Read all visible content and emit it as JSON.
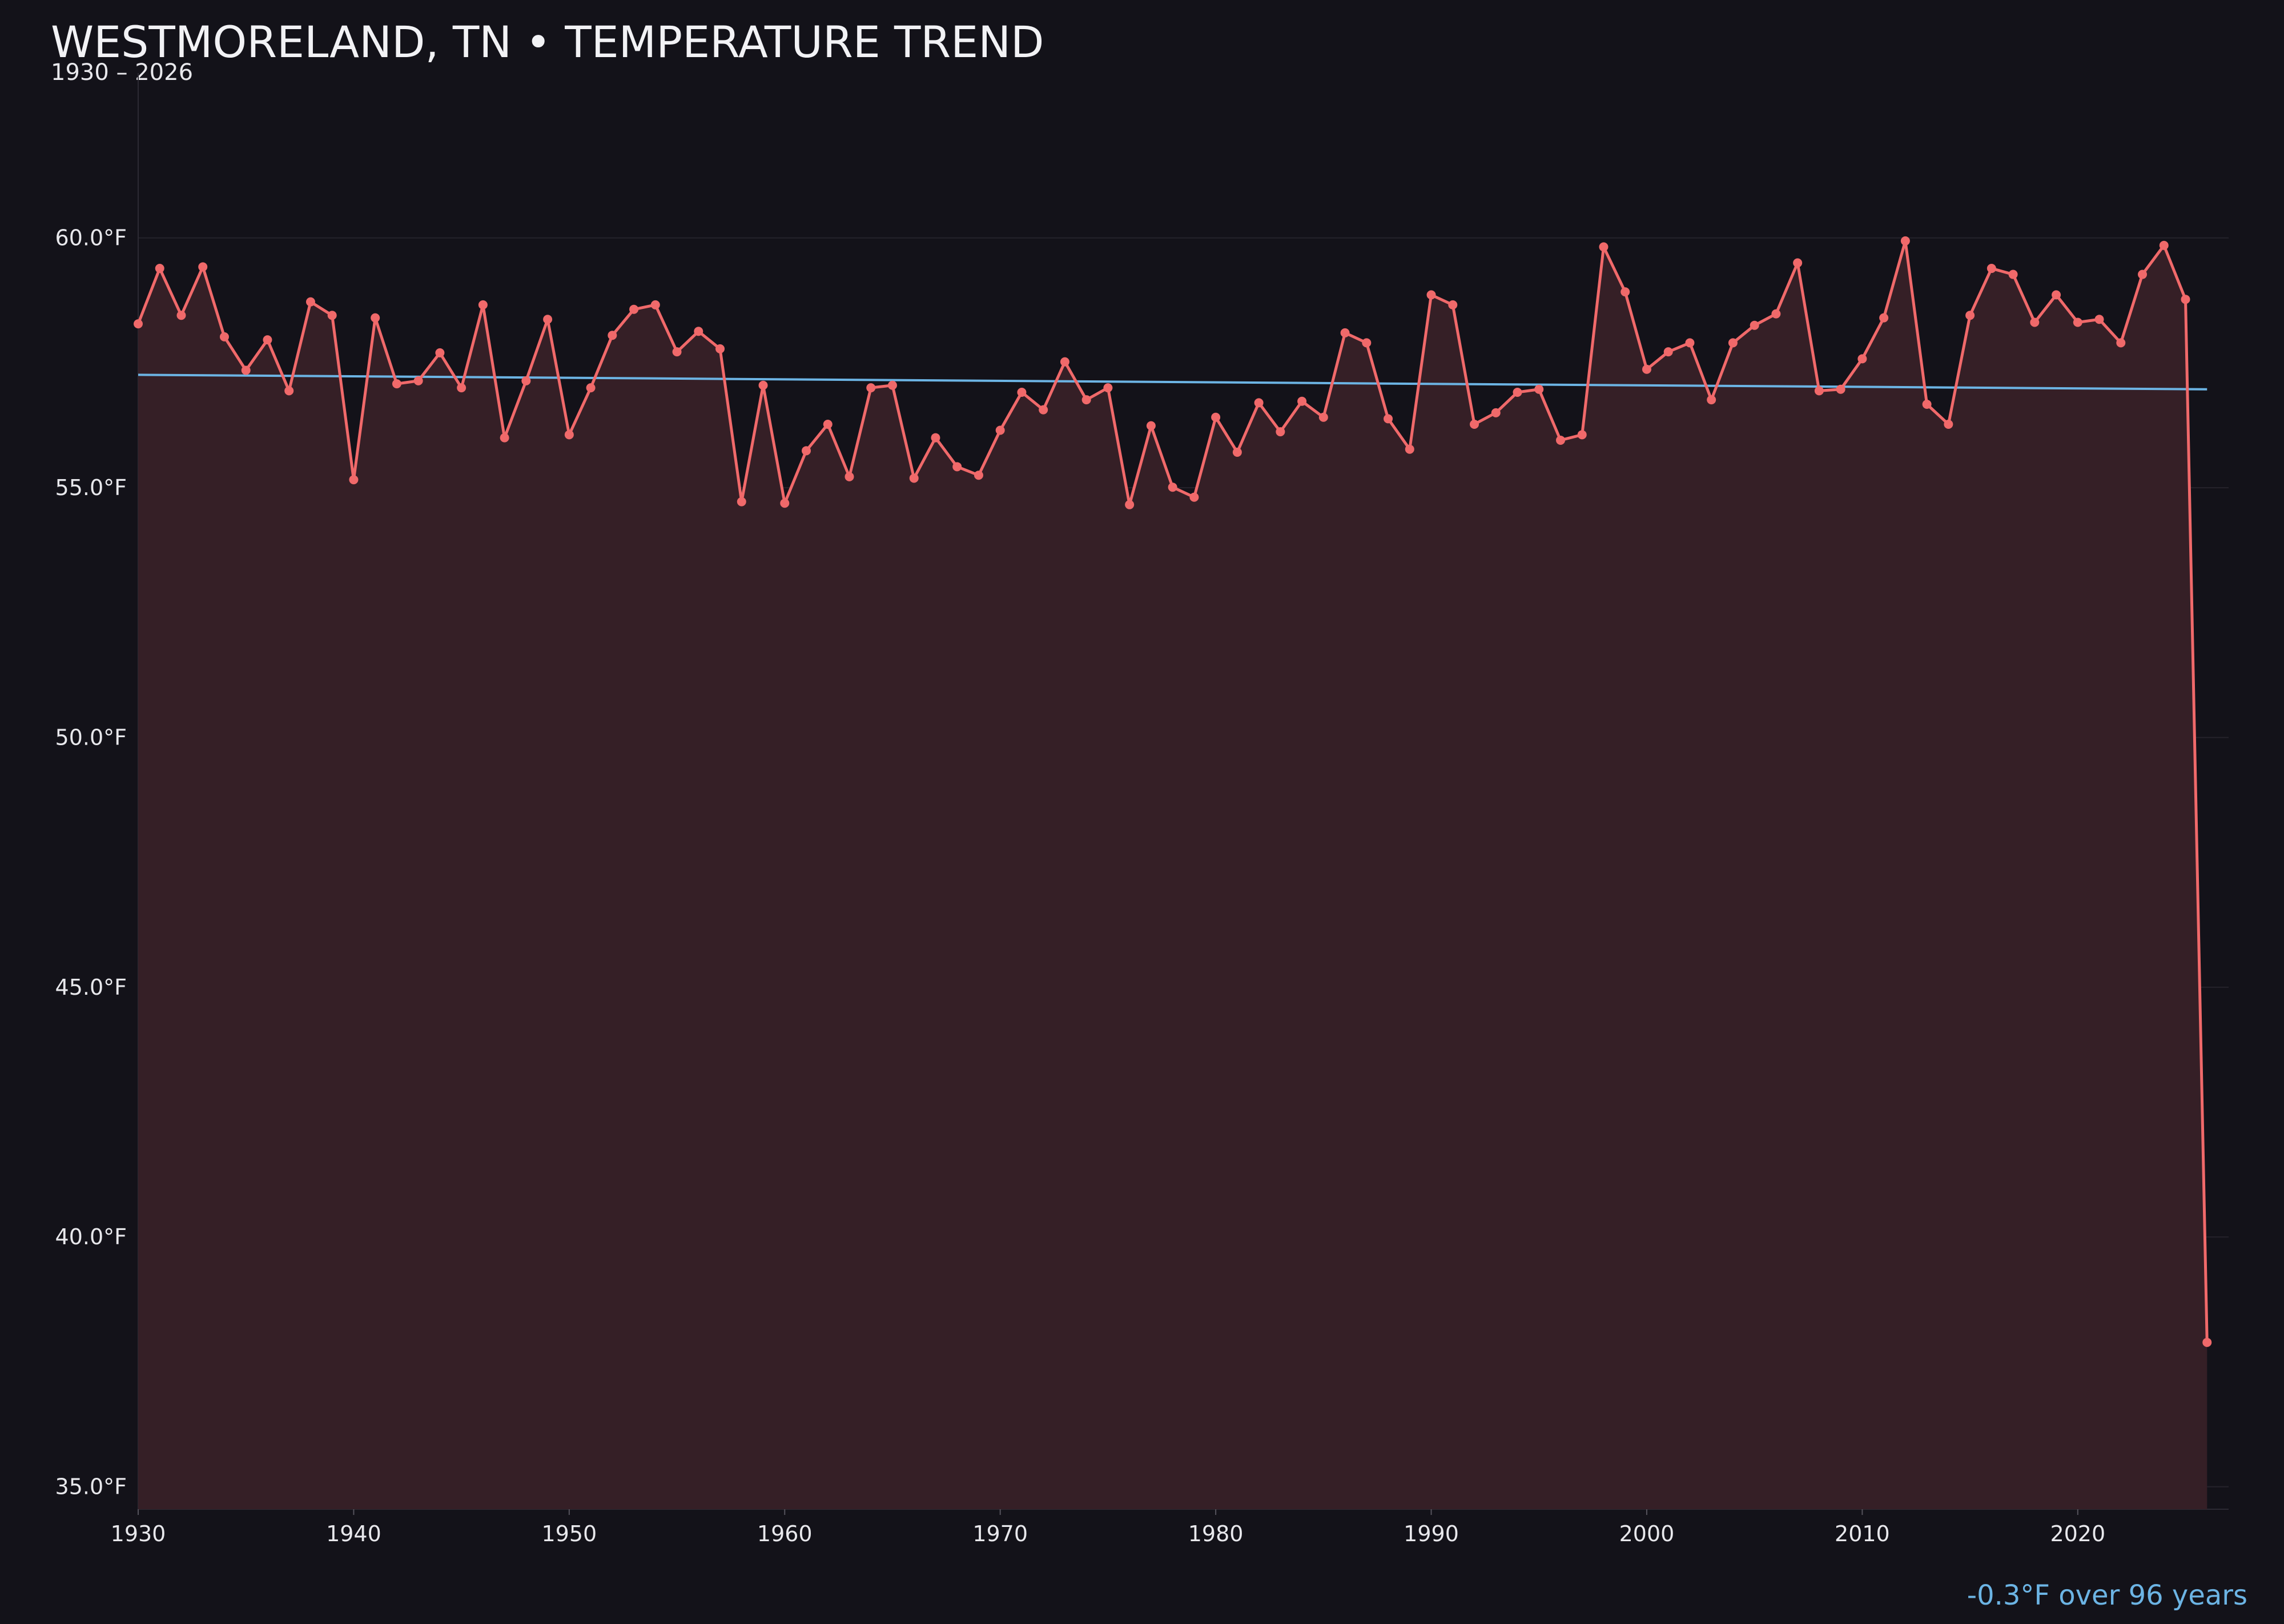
{
  "chart_data": {
    "type": "line",
    "title": "WESTMORELAND, TN • TEMPERATURE TREND",
    "subtitle": "1930 – 2026",
    "annotation": "-0.3°F over 96 years",
    "x": [
      1930,
      1931,
      1932,
      1933,
      1934,
      1935,
      1936,
      1937,
      1938,
      1939,
      1940,
      1941,
      1942,
      1943,
      1944,
      1945,
      1946,
      1947,
      1948,
      1949,
      1950,
      1951,
      1952,
      1953,
      1954,
      1955,
      1956,
      1957,
      1958,
      1959,
      1960,
      1961,
      1962,
      1963,
      1964,
      1965,
      1966,
      1967,
      1968,
      1969,
      1970,
      1971,
      1972,
      1973,
      1974,
      1975,
      1976,
      1977,
      1978,
      1979,
      1980,
      1981,
      1982,
      1983,
      1984,
      1985,
      1986,
      1987,
      1988,
      1989,
      1990,
      1991,
      1992,
      1993,
      1994,
      1995,
      1996,
      1997,
      1998,
      1999,
      2000,
      2001,
      2002,
      2003,
      2004,
      2005,
      2006,
      2007,
      2008,
      2009,
      2010,
      2011,
      2012,
      2013,
      2014,
      2015,
      2016,
      2017,
      2018,
      2019,
      2020,
      2021,
      2022,
      2023,
      2024,
      2025,
      2026
    ],
    "values": [
      58.28,
      59.39,
      58.45,
      59.42,
      58.02,
      57.35,
      57.96,
      56.94,
      58.72,
      58.45,
      55.16,
      58.4,
      57.08,
      57.14,
      57.7,
      57.0,
      58.66,
      56.0,
      57.14,
      58.37,
      56.06,
      57.0,
      58.05,
      58.57,
      58.66,
      57.72,
      58.13,
      57.78,
      54.72,
      57.05,
      54.69,
      55.74,
      56.27,
      55.22,
      57.0,
      57.05,
      55.19,
      56.0,
      55.42,
      55.25,
      56.15,
      56.91,
      56.56,
      57.52,
      56.76,
      57.0,
      54.66,
      56.24,
      55.01,
      54.81,
      56.41,
      55.71,
      56.7,
      56.12,
      56.73,
      56.41,
      58.1,
      57.9,
      56.38,
      55.77,
      58.86,
      58.66,
      56.27,
      56.5,
      56.91,
      56.97,
      55.95,
      56.06,
      59.82,
      58.92,
      57.37,
      57.72,
      57.9,
      56.76,
      57.9,
      58.25,
      58.48,
      59.5,
      56.94,
      56.97,
      57.58,
      58.4,
      59.94,
      56.67,
      56.27,
      58.45,
      59.39,
      59.27,
      58.31,
      58.86,
      58.31,
      58.37,
      57.9,
      59.27,
      59.85,
      58.77,
      37.89
    ],
    "color": "#f0696a",
    "fill_color": "#351f26",
    "trend": {
      "x": [
        1930,
        2026
      ],
      "values": [
        57.26,
        56.97
      ],
      "color": "#6cb4e4"
    },
    "xlim": [
      1930,
      2027
    ],
    "ylim": [
      34.55,
      63.3
    ],
    "xticks": [
      1930,
      1940,
      1950,
      1960,
      1970,
      1980,
      1990,
      2000,
      2010,
      2020
    ],
    "yticks": [
      {
        "value": 35,
        "label": "35.0°F"
      },
      {
        "value": 40,
        "label": "40.0°F"
      },
      {
        "value": 45,
        "label": "45.0°F"
      },
      {
        "value": 50,
        "label": "50.0°F"
      },
      {
        "value": 55,
        "label": "55.0°F"
      },
      {
        "value": 60,
        "label": "60.0°F"
      }
    ],
    "grid": true
  }
}
